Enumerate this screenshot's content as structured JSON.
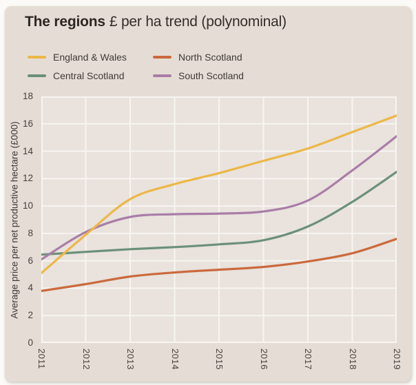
{
  "title": {
    "bold": "The regions",
    "regular": "£ per ha trend (polynominal)"
  },
  "colors": {
    "card_background": "#e5ddd5",
    "plot_background": "#e9e2dd",
    "gridline": "#f7f5f2",
    "title_text": "#2d2724",
    "tick_text": "#45403c",
    "england_wales": "#ecb747",
    "north_scotland": "#cb693c",
    "central_scotland": "#6b9079",
    "south_scotland": "#a97da7"
  },
  "chart_data": {
    "type": "line",
    "title": "The regions £ per ha trend (polynominal)",
    "ylabel": "Average price per net productive hectare (£000)",
    "xlabel": "",
    "x": [
      2011,
      2012,
      2013,
      2014,
      2015,
      2016,
      2017,
      2018,
      2019
    ],
    "ylim": [
      0,
      18
    ],
    "ytick_step": 2,
    "grid": true,
    "legend_position": "top-left",
    "series": [
      {
        "name": "England & Wales",
        "color": "#ecb747",
        "values": [
          5.1,
          7.9,
          10.5,
          11.6,
          12.4,
          13.3,
          14.2,
          15.4,
          16.6
        ]
      },
      {
        "name": "North Scotland",
        "color": "#cb693c",
        "values": [
          3.8,
          4.3,
          4.85,
          5.15,
          5.35,
          5.55,
          5.95,
          6.55,
          7.6
        ]
      },
      {
        "name": "Central Scotland",
        "color": "#6b9079",
        "values": [
          6.45,
          6.65,
          6.85,
          7.0,
          7.2,
          7.5,
          8.5,
          10.3,
          12.5
        ]
      },
      {
        "name": "South Scotland",
        "color": "#a97da7",
        "values": [
          6.1,
          8.1,
          9.2,
          9.4,
          9.45,
          9.6,
          10.4,
          12.6,
          15.1
        ]
      }
    ]
  }
}
